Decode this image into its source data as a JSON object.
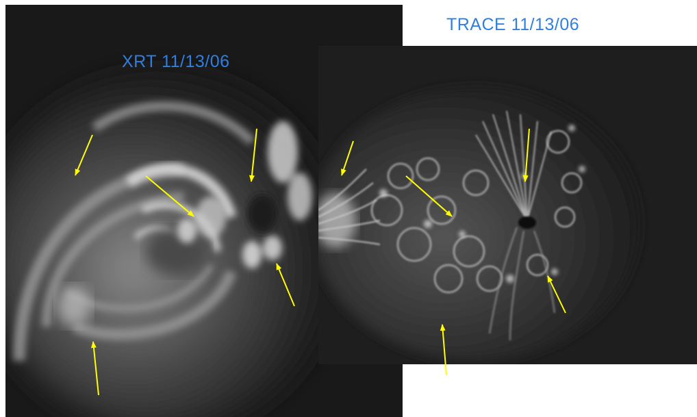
{
  "panels": {
    "xrt": {
      "label": "XRT 11/13/06"
    },
    "trace": {
      "label": "TRACE 11/13/06"
    }
  },
  "arrow_color": "#ffff00",
  "label_color": "#2f7fe0"
}
